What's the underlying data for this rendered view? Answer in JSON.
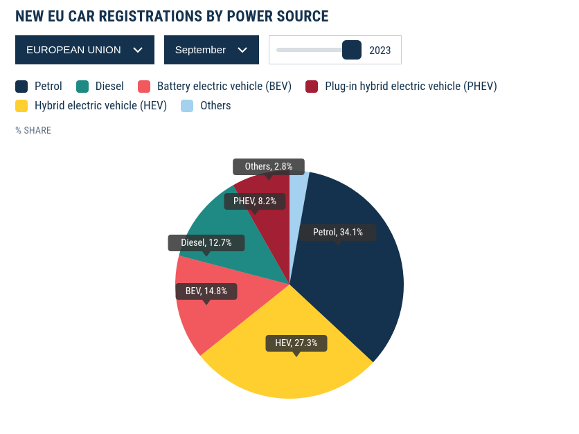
{
  "title": "NEW EU CAR REGISTRATIONS BY POWER SOURCE",
  "controls": {
    "region_label": "EUROPEAN UNION",
    "month_label": "September",
    "year_value": "2023",
    "slider_pos_pct": 92
  },
  "subhead": "% SHARE",
  "chart": {
    "type": "pie",
    "background_color": "#ffffff",
    "radius": 165,
    "start_angle_deg": -90,
    "label_box_fill": "#333333",
    "label_box_opacity": 0.85,
    "label_text_color": "#ffffff",
    "label_fontsize": 14,
    "series": [
      {
        "key": "others",
        "legend": "Others",
        "short": "Others",
        "value": 2.8,
        "color": "#a3d1ef",
        "legend_order": 6,
        "label_dx": -30,
        "label_dy": -170
      },
      {
        "key": "petrol",
        "legend": "Petrol",
        "short": "Petrol",
        "value": 34.1,
        "color": "#14324d",
        "legend_order": 1,
        "label_dx": 70,
        "label_dy": -75
      },
      {
        "key": "hev",
        "legend": "Hybrid electric vehicle (HEV)",
        "short": "HEV",
        "value": 27.3,
        "color": "#ffcf2f",
        "legend_order": 5,
        "label_dx": 10,
        "label_dy": 85
      },
      {
        "key": "bev",
        "legend": "Battery electric vehicle (BEV)",
        "short": "BEV",
        "value": 14.8,
        "color": "#f1595f",
        "legend_order": 3,
        "label_dx": -120,
        "label_dy": 10
      },
      {
        "key": "diesel",
        "legend": "Diesel",
        "short": "Diesel",
        "value": 12.7,
        "color": "#1f8a84",
        "legend_order": 2,
        "label_dx": -120,
        "label_dy": -60
      },
      {
        "key": "phev",
        "legend": "Plug-in hybrid electric vehicle (PHEV)",
        "short": "PHEV",
        "value": 8.2,
        "color": "#a31f34",
        "legend_order": 4,
        "label_dx": -50,
        "label_dy": -120
      }
    ]
  }
}
